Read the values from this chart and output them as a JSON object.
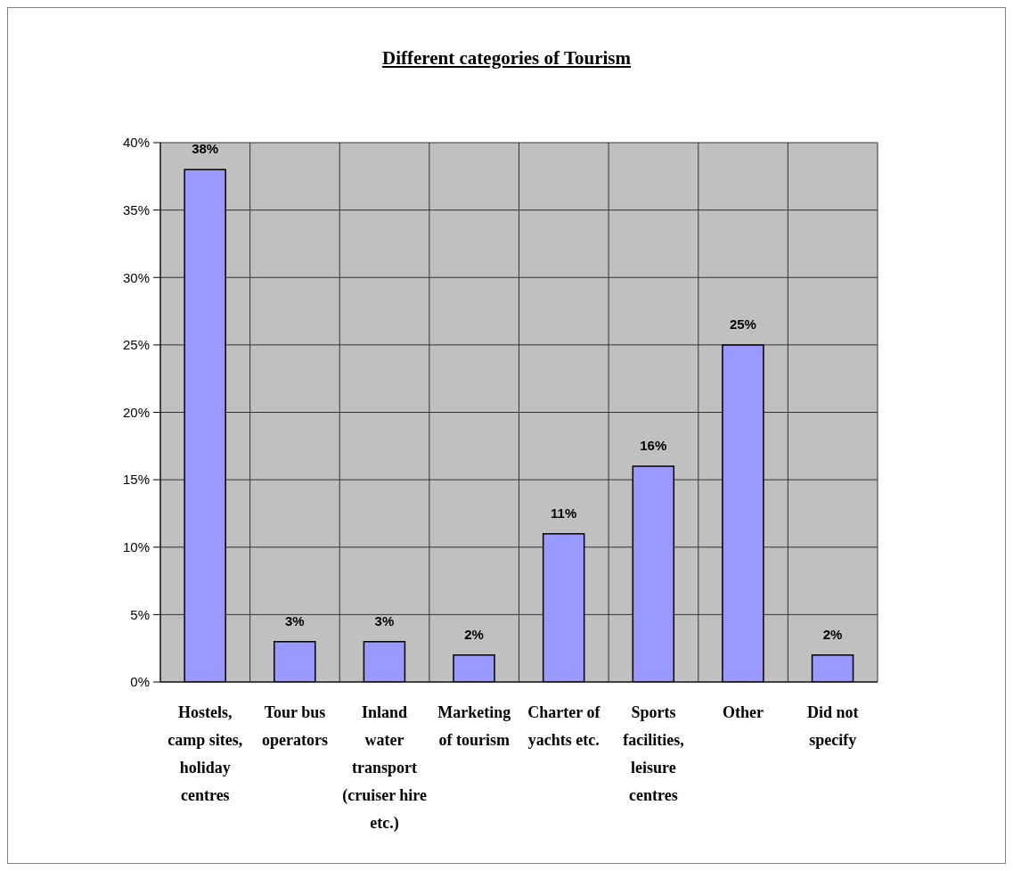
{
  "chart_data": {
    "type": "bar",
    "title": "Different categories of Tourism",
    "categories": [
      "Hostels, camp sites, holiday centres",
      "Tour bus operators",
      "Inland water transport (cruiser hire etc.)",
      "Marketing of tourism",
      "Charter of yachts etc.",
      "Sports facilities, leisure centres",
      "Other",
      "Did not specify"
    ],
    "values": [
      38,
      3,
      3,
      2,
      11,
      16,
      25,
      2
    ],
    "value_labels": [
      "38%",
      "3%",
      "3%",
      "2%",
      "11%",
      "16%",
      "25%",
      "2%"
    ],
    "color": "#9999ff",
    "ylim": [
      0,
      40
    ],
    "yticks": [
      {
        "value": 0,
        "label": "0%"
      },
      {
        "value": 5,
        "label": "5%"
      },
      {
        "value": 10,
        "label": "10%"
      },
      {
        "value": 15,
        "label": "15%"
      },
      {
        "value": 20,
        "label": "20%"
      },
      {
        "value": 25,
        "label": "25%"
      },
      {
        "value": 30,
        "label": "30%"
      },
      {
        "value": 35,
        "label": "35%"
      },
      {
        "value": 40,
        "label": "40%"
      }
    ],
    "grid": true
  }
}
